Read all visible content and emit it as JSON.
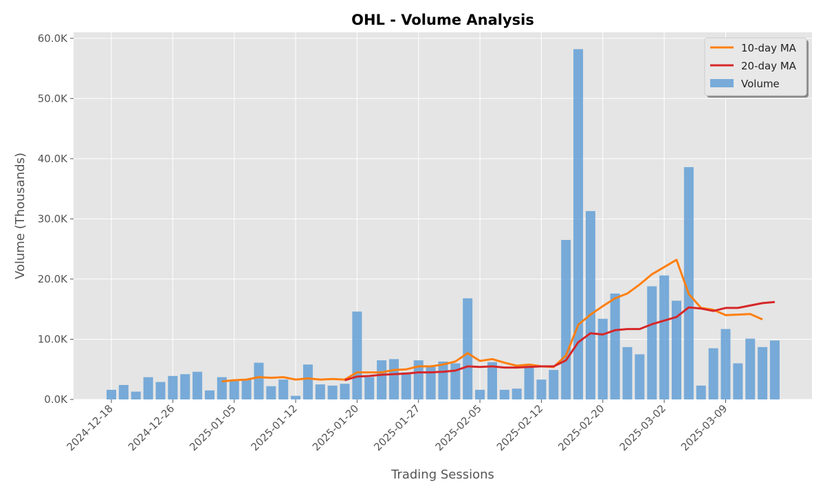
{
  "chart_data": {
    "type": "bar",
    "title": "OHL - Volume Analysis",
    "xlabel": "Trading Sessions",
    "ylabel": "Volume (Thousands)",
    "ylim": [
      0,
      61000
    ],
    "yticks": [
      0,
      10000,
      20000,
      30000,
      40000,
      50000,
      60000
    ],
    "ytick_labels": [
      "0.0K",
      "10.0K",
      "20.0K",
      "30.0K",
      "40.0K",
      "50.0K",
      "60.0K"
    ],
    "xtick_labels": [
      {
        "index": 0,
        "label": "2024-12-18"
      },
      {
        "index": 5,
        "label": "2024-12-26"
      },
      {
        "index": 10,
        "label": "2025-01-05"
      },
      {
        "index": 15,
        "label": "2025-01-12"
      },
      {
        "index": 20,
        "label": "2025-01-20"
      },
      {
        "index": 25,
        "label": "2025-01-27"
      },
      {
        "index": 30,
        "label": "2025-02-05"
      },
      {
        "index": 35,
        "label": "2025-02-12"
      },
      {
        "index": 40,
        "label": "2025-02-20"
      },
      {
        "index": 45,
        "label": "2025-03-02"
      },
      {
        "index": 50,
        "label": "2025-03-09"
      }
    ],
    "grid": true,
    "legend_position": "top-right",
    "series": [
      {
        "name": "Volume",
        "kind": "bar",
        "color": "#5b9bd5",
        "values": [
          1600,
          2400,
          1300,
          3700,
          2900,
          3900,
          4200,
          4600,
          1500,
          3700,
          3200,
          3400,
          6100,
          2200,
          3300,
          600,
          5800,
          2500,
          2300,
          2600,
          14600,
          3700,
          6500,
          6700,
          4500,
          6500,
          5500,
          6300,
          6000,
          16800,
          1600,
          6200,
          1600,
          1800,
          5700,
          3300,
          4900,
          26500,
          58200,
          31300,
          13400,
          17600,
          8700,
          7500,
          18800,
          20600,
          16400,
          38600,
          2300,
          8500,
          11700,
          6000,
          10100,
          8700,
          9800
        ]
      },
      {
        "name": "10-day MA",
        "kind": "line",
        "color": "#ff7f0e",
        "start_index": 9,
        "values": [
          3000,
          3200,
          3300,
          3700,
          3600,
          3700,
          3300,
          3500,
          3300,
          3400,
          3300,
          4500,
          4500,
          4500,
          4900,
          5000,
          5500,
          5500,
          5800,
          6300,
          7700,
          6400,
          6700,
          6100,
          5600,
          5800,
          5500,
          5400,
          7300,
          12400,
          14100,
          15500,
          16800,
          17600,
          19100,
          20800,
          22000,
          23200,
          17500,
          15200,
          14900,
          14000,
          14100,
          14200,
          13300
        ]
      },
      {
        "name": "20-day MA",
        "kind": "line",
        "color": "#d62728",
        "start_index": 19,
        "values": [
          3200,
          3800,
          3900,
          4100,
          4200,
          4300,
          4500,
          4500,
          4600,
          4800,
          5500,
          5400,
          5500,
          5300,
          5300,
          5400,
          5500,
          5500,
          6500,
          9500,
          11000,
          10800,
          11500,
          11700,
          11700,
          12500,
          13100,
          13700,
          15300,
          15100,
          14700,
          15200,
          15200,
          15600,
          16000,
          16200
        ]
      }
    ]
  }
}
